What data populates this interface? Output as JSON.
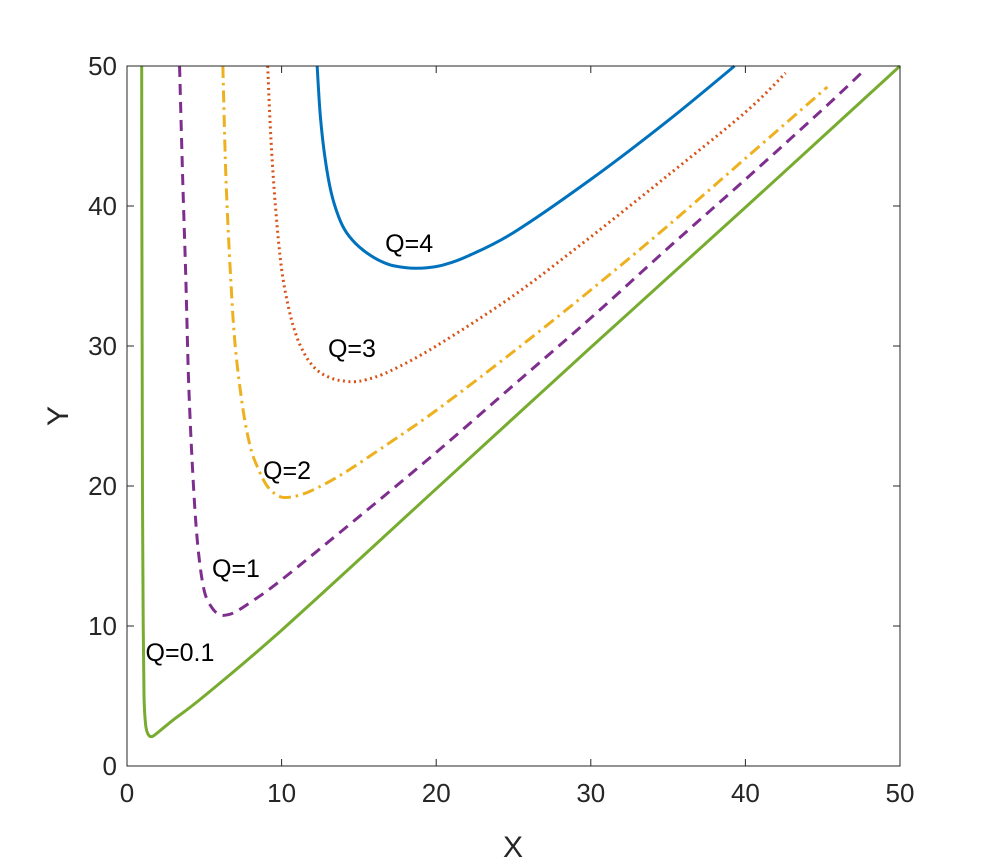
{
  "chart_data": {
    "type": "line",
    "title": "",
    "xlabel": "X",
    "ylabel": "Y",
    "xlim": [
      0,
      50
    ],
    "ylim": [
      0,
      50
    ],
    "xticks": [
      "0",
      "10",
      "20",
      "30",
      "40",
      "50"
    ],
    "yticks": [
      "0",
      "10",
      "20",
      "30",
      "40",
      "50"
    ],
    "grid": false,
    "series": [
      {
        "name": "Q=0.1",
        "color": "#77AC30",
        "dash": "solid",
        "label_at": [
          1.2,
          7.5
        ],
        "x": [
          0.95,
          0.96,
          0.98,
          1.0,
          1.05,
          1.1,
          1.2,
          1.35,
          1.6,
          2.0,
          3.0,
          5.0,
          10.0,
          20.0,
          30.0,
          40.0,
          50.0
        ],
        "y": [
          50.0,
          40.0,
          30.0,
          20.0,
          10.0,
          5.0,
          3.0,
          2.3,
          2.1,
          2.4,
          3.3,
          5.0,
          9.7,
          19.8,
          29.9,
          39.9,
          50.0
        ]
      },
      {
        "name": "Q=1",
        "color": "#7E2F8E",
        "dash": "dashed",
        "label_at": [
          5.5,
          13.5
        ],
        "x": [
          3.4,
          3.6,
          3.8,
          4.0,
          4.3,
          4.6,
          5.0,
          5.5,
          6.0,
          6.5,
          7.0,
          8.0,
          10.0,
          15.0,
          20.0,
          25.0,
          30.0,
          35.0,
          40.0,
          45.0,
          47.5
        ],
        "y": [
          50.0,
          42.0,
          35.0,
          27.0,
          20.0,
          15.5,
          12.5,
          11.3,
          10.8,
          10.8,
          11.0,
          11.7,
          13.3,
          17.8,
          22.4,
          27.2,
          32.0,
          37.0,
          41.9,
          46.9,
          49.5
        ]
      },
      {
        "name": "Q=2",
        "color": "#EDB120",
        "dash": "dashdot",
        "label_at": [
          8.8,
          20.5
        ],
        "x": [
          6.2,
          6.4,
          6.7,
          7.0,
          7.5,
          8.0,
          8.5,
          9.0,
          9.5,
          10.0,
          10.5,
          11.0,
          12.0,
          14.0,
          17.0,
          20.0,
          25.0,
          30.0,
          35.0,
          40.0,
          45.3
        ],
        "y": [
          50.0,
          42.0,
          35.0,
          30.0,
          25.5,
          22.7,
          21.2,
          20.1,
          19.5,
          19.2,
          19.2,
          19.3,
          19.7,
          20.9,
          23.1,
          25.4,
          29.6,
          34.0,
          38.6,
          43.4,
          48.5
        ]
      },
      {
        "name": "Q=3",
        "color": "#D95319",
        "dash": "dotted",
        "label_at": [
          13.0,
          29.2
        ],
        "x": [
          9.1,
          9.3,
          9.6,
          10.0,
          10.5,
          11.0,
          11.5,
          12.0,
          12.5,
          13.0,
          13.5,
          14.0,
          14.7,
          15.5,
          17.0,
          20.0,
          25.0,
          30.0,
          35.0,
          40.0,
          42.6
        ],
        "y": [
          50.0,
          45.0,
          40.0,
          35.5,
          32.5,
          30.6,
          29.4,
          28.6,
          28.1,
          27.8,
          27.6,
          27.5,
          27.45,
          27.6,
          28.2,
          30.0,
          33.6,
          37.8,
          42.2,
          46.7,
          49.5
        ]
      },
      {
        "name": "Q=4",
        "color": "#0072BD",
        "dash": "solid",
        "label_at": [
          16.7,
          36.7
        ],
        "x": [
          12.3,
          12.5,
          12.8,
          13.2,
          13.7,
          14.2,
          15.0,
          16.0,
          17.0,
          18.0,
          18.7,
          19.5,
          20.5,
          22.0,
          25.0,
          30.0,
          35.0,
          39.3
        ],
        "y": [
          50.0,
          46.5,
          43.5,
          41.0,
          39.2,
          38.1,
          37.1,
          36.3,
          35.8,
          35.6,
          35.55,
          35.6,
          35.8,
          36.4,
          38.1,
          41.9,
          46.1,
          50.0
        ]
      }
    ]
  }
}
